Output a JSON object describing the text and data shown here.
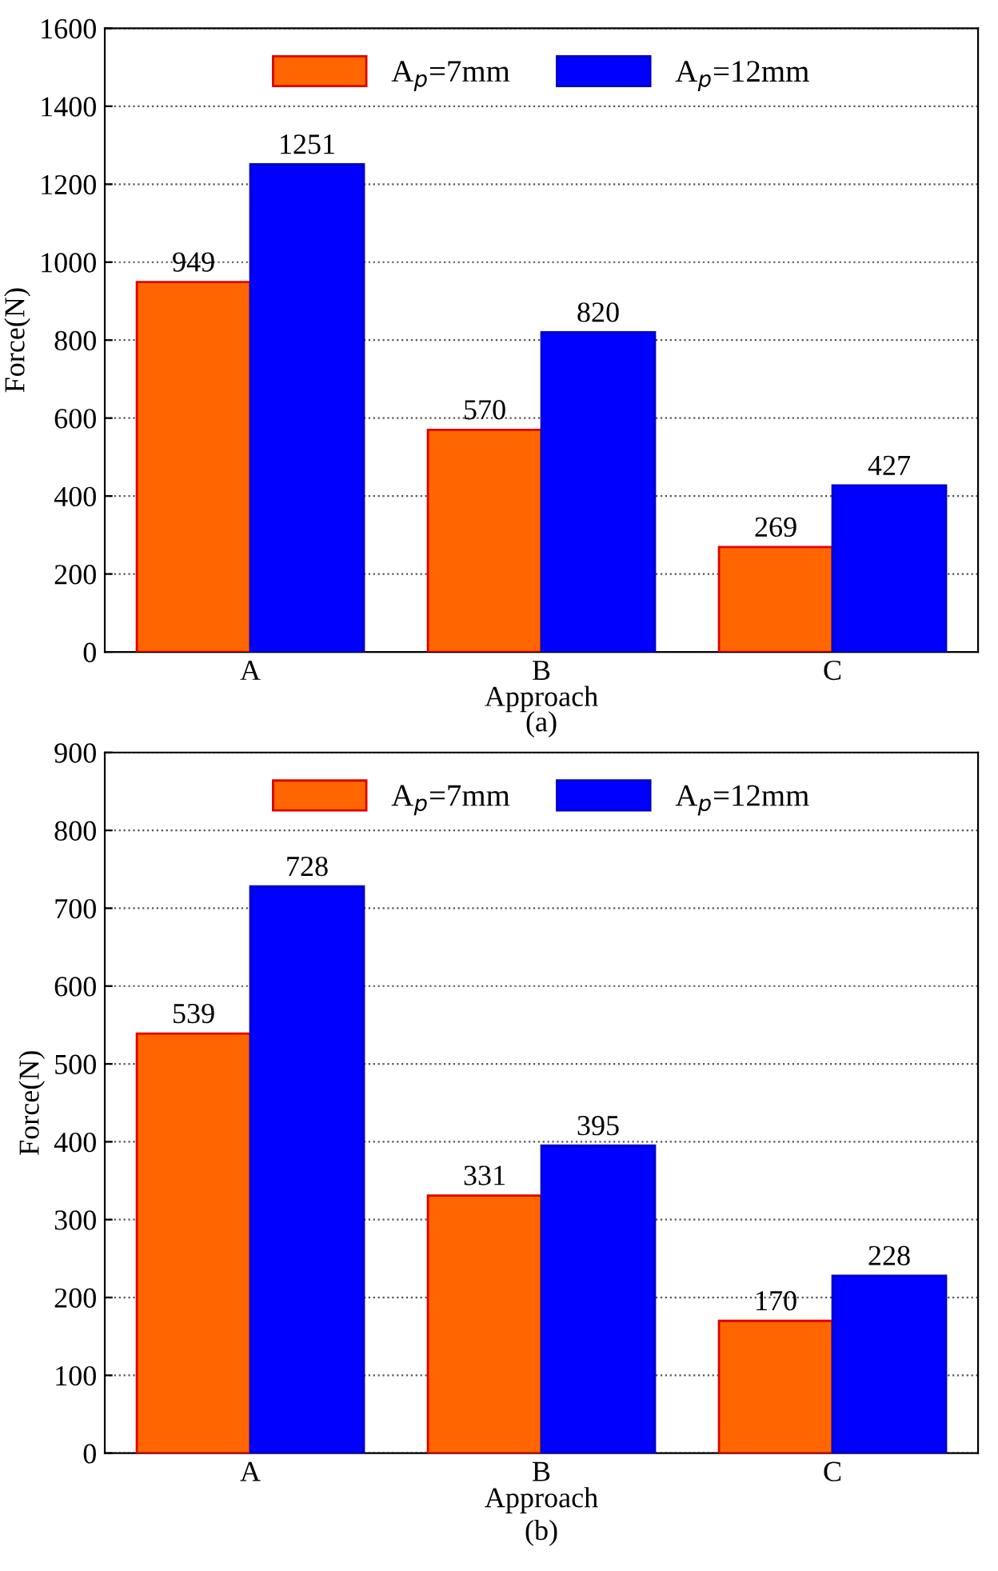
{
  "chart_data": [
    {
      "type": "bar",
      "xlabel": "Approach",
      "ylabel": "Force(N)",
      "categories": [
        "A",
        "B",
        "C"
      ],
      "series": [
        {
          "name": "A$_{p}$=7mm",
          "color": "#ff6600",
          "values": [
            949,
            570,
            269
          ]
        },
        {
          "name": "A$_{p}$=12mm",
          "color": "#0000ff",
          "values": [
            1251,
            820,
            427
          ]
        }
      ],
      "ylim": [
        0,
        1600
      ],
      "yticks": [
        0,
        200,
        400,
        600,
        800,
        1000,
        1200,
        1400,
        1600
      ],
      "grid": "y",
      "legend": "top",
      "data_labels": true,
      "annotations": [
        "(a)"
      ]
    },
    {
      "type": "bar",
      "xlabel": "Approach",
      "ylabel": "Force(N)",
      "categories": [
        "A",
        "B",
        "C"
      ],
      "series": [
        {
          "name": "A$_{p}$=7mm",
          "color": "#ff6600",
          "values": [
            539,
            331,
            170
          ]
        },
        {
          "name": "A$_{p}$=12mm",
          "color": "#0000ff",
          "values": [
            728,
            395,
            228
          ]
        }
      ],
      "ylim": [
        0,
        900
      ],
      "yticks": [
        0,
        100,
        200,
        300,
        400,
        500,
        600,
        700,
        800,
        900
      ],
      "grid": "y",
      "legend": "top",
      "data_labels": true,
      "annotations": [
        "(b)"
      ]
    }
  ]
}
